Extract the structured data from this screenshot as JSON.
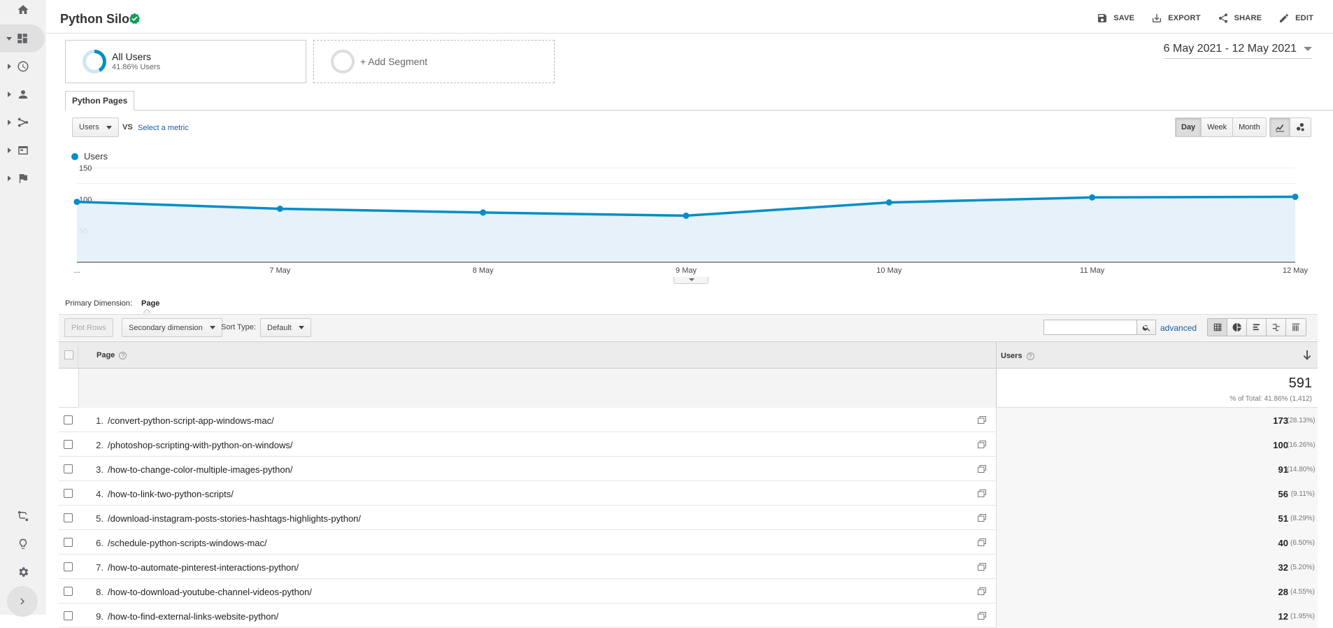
{
  "header": {
    "title": "Python Silo",
    "actions": [
      {
        "label": "SAVE",
        "icon": "save-icon"
      },
      {
        "label": "EXPORT",
        "icon": "export-icon"
      },
      {
        "label": "SHARE",
        "icon": "share-icon"
      },
      {
        "label": "EDIT",
        "icon": "edit-icon"
      }
    ]
  },
  "segments": {
    "all_users": {
      "name": "All Users",
      "sub": "41.86% Users",
      "share": 0.4186
    },
    "add_segment": "+ Add Segment"
  },
  "date_range": "6 May 2021 - 12 May 2021",
  "tab": "Python Pages",
  "metric_picker": {
    "selected": "Users",
    "vs": "VS",
    "select_metric": "Select a metric"
  },
  "granularity": {
    "day": "Day",
    "week": "Week",
    "month": "Month"
  },
  "colors": {
    "series": "#058dc7",
    "area": "#e3f0f8"
  },
  "chart_data": {
    "type": "line",
    "categories": [
      "...",
      "7 May",
      "8 May",
      "9 May",
      "10 May",
      "11 May",
      "12 May"
    ],
    "series": [
      {
        "name": "Users",
        "values": [
          96,
          85,
          79,
          74,
          95,
          103,
          104
        ]
      }
    ],
    "ylim": [
      0,
      150
    ],
    "yticks": [
      "50",
      "100",
      "150"
    ],
    "grid": true,
    "legend": "top-left"
  },
  "primary_dimension": {
    "label": "Primary Dimension:",
    "value": "Page"
  },
  "toolbar": {
    "plot_rows": "Plot Rows",
    "secondary": "Secondary dimension",
    "sort_type_label": "Sort Type:",
    "sort_type": "Default",
    "advanced": "advanced"
  },
  "table": {
    "col_page": "Page",
    "col_users": "Users",
    "total": "591",
    "total_pct": "% of Total: 41.86% (1,412)",
    "rows": [
      {
        "idx": "1.",
        "page": "/convert-python-script-app-windows-mac/",
        "users": "173",
        "pct": "(28.13%)"
      },
      {
        "idx": "2.",
        "page": "/photoshop-scripting-with-python-on-windows/",
        "users": "100",
        "pct": "(16.26%)"
      },
      {
        "idx": "3.",
        "page": "/how-to-change-color-multiple-images-python/",
        "users": "91",
        "pct": "(14.80%)"
      },
      {
        "idx": "4.",
        "page": "/how-to-link-two-python-scripts/",
        "users": "56",
        "pct": "(9.11%)"
      },
      {
        "idx": "5.",
        "page": "/download-instagram-posts-stories-hashtags-highlights-python/",
        "users": "51",
        "pct": "(8.29%)"
      },
      {
        "idx": "6.",
        "page": "/schedule-python-scripts-windows-mac/",
        "users": "40",
        "pct": "(6.50%)"
      },
      {
        "idx": "7.",
        "page": "/how-to-automate-pinterest-interactions-python/",
        "users": "32",
        "pct": "(5.20%)"
      },
      {
        "idx": "8.",
        "page": "/how-to-download-youtube-channel-videos-python/",
        "users": "28",
        "pct": "(4.55%)"
      },
      {
        "idx": "9.",
        "page": "/how-to-find-external-links-website-python/",
        "users": "12",
        "pct": "(1.95%)"
      }
    ]
  }
}
